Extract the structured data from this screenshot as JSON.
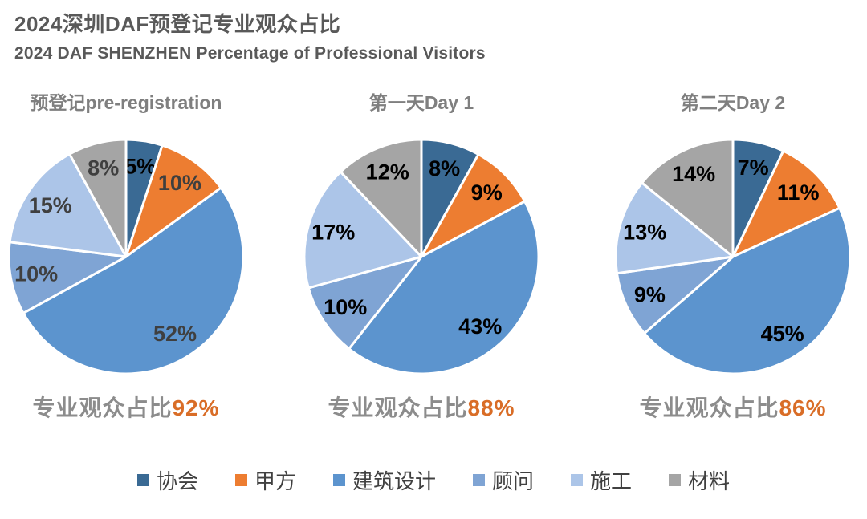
{
  "header": {
    "title_line1": "2024深圳DAF预登记专业观众占比",
    "title_line2": "2024 DAF SHENZHEN Percentage of Professional Visitors",
    "color": "#595959"
  },
  "colors": {
    "subtitle": "#7f7f7f",
    "caption_text": "#8c8c8c",
    "caption_value": "#d96d27",
    "legend_text": "#404040",
    "slice_border": "#ffffff"
  },
  "palette": [
    "#3a6a94",
    "#ed7d31",
    "#5c94ce",
    "#7fa4d4",
    "#acc5e8",
    "#a5a5a5"
  ],
  "chart_data": [
    {
      "type": "pie",
      "title": "预登记pre-registration",
      "categories": [
        "协会",
        "甲方",
        "建筑设计",
        "顾问",
        "施工",
        "材料"
      ],
      "values": [
        5,
        10,
        52,
        10,
        15,
        8
      ],
      "data_labels": [
        "5%",
        "10%",
        "52%",
        "10%",
        "15%",
        "8%"
      ],
      "label_colors": [
        "#000000",
        "#3f3f3f",
        "#3f3f3f",
        "#3f3f3f",
        "#3f3f3f",
        "#3f3f3f"
      ],
      "start_angle_deg": 0,
      "direction": "clockwise",
      "caption_text": "专业观众占比",
      "caption_value": "92%"
    },
    {
      "type": "pie",
      "title": "第一天Day 1",
      "categories": [
        "协会",
        "甲方",
        "建筑设计",
        "顾问",
        "施工",
        "材料"
      ],
      "values": [
        8,
        9,
        43,
        10,
        17,
        12
      ],
      "data_labels": [
        "8%",
        "9%",
        "43%",
        "10%",
        "17%",
        "12%"
      ],
      "label_colors": [
        "#000000",
        "#000000",
        "#000000",
        "#000000",
        "#000000",
        "#000000"
      ],
      "start_angle_deg": 0,
      "direction": "clockwise",
      "caption_text": "专业观众占比",
      "caption_value": "88%"
    },
    {
      "type": "pie",
      "title": "第二天Day 2",
      "categories": [
        "协会",
        "甲方",
        "建筑设计",
        "顾问",
        "施工",
        "材料"
      ],
      "values": [
        7,
        11,
        45,
        9,
        13,
        14
      ],
      "data_labels": [
        "7%",
        "11%",
        "45%",
        "9%",
        "13%",
        "14%"
      ],
      "label_colors": [
        "#000000",
        "#000000",
        "#000000",
        "#000000",
        "#000000",
        "#000000"
      ],
      "start_angle_deg": 0,
      "direction": "clockwise",
      "caption_text": "专业观众占比",
      "caption_value": "86%"
    }
  ],
  "legend": {
    "items": [
      {
        "label": "协会",
        "color": "#3a6a94"
      },
      {
        "label": "甲方",
        "color": "#ed7d31"
      },
      {
        "label": "建筑设计",
        "color": "#5c94ce"
      },
      {
        "label": "顾问",
        "color": "#7fa4d4"
      },
      {
        "label": "施工",
        "color": "#acc5e8"
      },
      {
        "label": "材料",
        "color": "#a5a5a5"
      }
    ]
  }
}
